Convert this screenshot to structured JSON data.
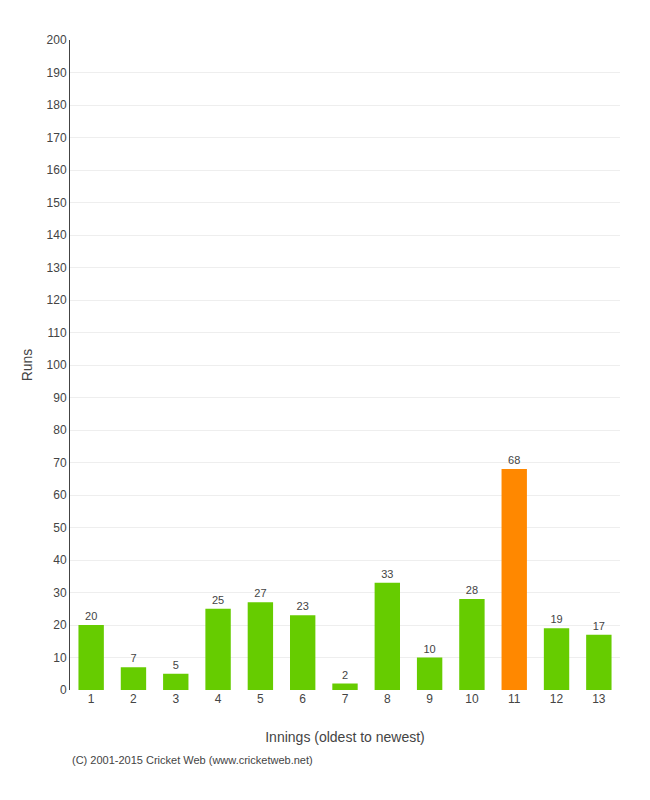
{
  "chart_data": {
    "type": "bar",
    "xlabel": "Innings (oldest to newest)",
    "ylabel": "Runs",
    "categories": [
      1,
      2,
      3,
      4,
      5,
      6,
      7,
      8,
      9,
      10,
      11,
      12,
      13
    ],
    "values": [
      20,
      7,
      5,
      25,
      27,
      23,
      2,
      33,
      10,
      28,
      68,
      19,
      17
    ],
    "colors": [
      "#66cc00",
      "#66cc00",
      "#66cc00",
      "#66cc00",
      "#66cc00",
      "#66cc00",
      "#66cc00",
      "#66cc00",
      "#66cc00",
      "#66cc00",
      "#ff8800",
      "#66cc00",
      "#66cc00"
    ],
    "ylim": [
      0,
      200
    ],
    "yticks": [
      0,
      10,
      20,
      30,
      40,
      50,
      60,
      70,
      80,
      90,
      100,
      110,
      120,
      130,
      140,
      150,
      160,
      170,
      180,
      190,
      200
    ],
    "grid": true,
    "data_labels": true,
    "annotations": [
      "(C) 2001-2015 Cricket Web (www.cricketweb.net)"
    ]
  }
}
